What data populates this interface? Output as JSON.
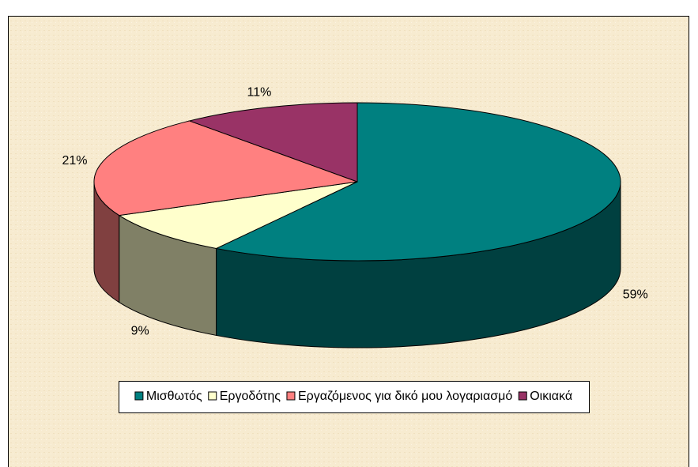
{
  "chart_data": {
    "type": "pie3d",
    "categories": [
      "Μισθωτός",
      "Εργοδότης",
      "Εργαζόμενος για δικό μου λογαριασμό",
      "Οικιακά"
    ],
    "values": [
      59,
      9,
      21,
      11
    ],
    "value_labels": [
      "59%",
      "9%",
      "21%",
      "11%"
    ],
    "colors": [
      "#008080",
      "#ffffcc",
      "#ff8080",
      "#993366"
    ],
    "legend": "bottom"
  }
}
